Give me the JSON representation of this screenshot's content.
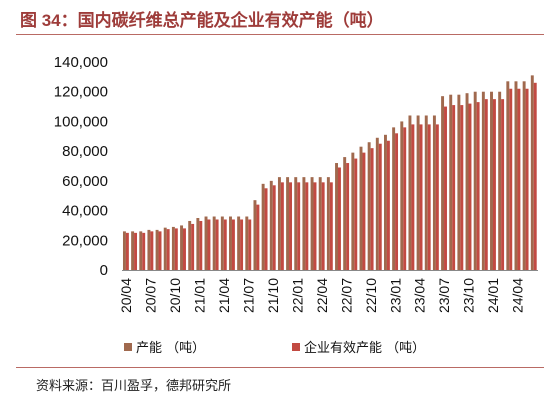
{
  "header": {
    "title": "图 34：国内碳纤维总产能及企业有效产能（吨）"
  },
  "footer": {
    "source": "资料来源：百川盈孚，德邦研究所"
  },
  "colors": {
    "total": "#a0694e",
    "effective": "#c24a42",
    "title": "#9e3c3a",
    "rule": "#b96a64"
  },
  "chart_data": {
    "type": "bar",
    "categories": [
      "20/04",
      "20/05",
      "20/06",
      "20/07",
      "20/08",
      "20/09",
      "20/10",
      "20/11",
      "20/12",
      "21/01",
      "21/02",
      "21/03",
      "21/04",
      "21/05",
      "21/06",
      "21/07",
      "21/08",
      "21/09",
      "21/10",
      "21/11",
      "21/12",
      "22/01",
      "22/02",
      "22/03",
      "22/04",
      "22/05",
      "22/06",
      "22/07",
      "22/08",
      "22/09",
      "22/10",
      "22/11",
      "22/12",
      "23/01",
      "23/02",
      "23/03",
      "23/04",
      "23/05",
      "23/06",
      "23/07",
      "23/08",
      "23/09",
      "23/10",
      "23/11",
      "23/12",
      "24/01",
      "24/02",
      "24/03",
      "24/04",
      "24/05",
      "24/06"
    ],
    "tick_labels": [
      "20/04",
      "20/07",
      "20/10",
      "21/01",
      "21/04",
      "21/07",
      "21/10",
      "22/01",
      "22/04",
      "22/07",
      "22/10",
      "23/01",
      "23/04",
      "23/07",
      "23/10",
      "24/01",
      "24/04"
    ],
    "series": [
      {
        "name": "产能 （吨）",
        "values": [
          26000,
          26000,
          26000,
          27000,
          27000,
          28500,
          29000,
          30000,
          33000,
          35000,
          36000,
          36000,
          36000,
          36000,
          36000,
          36000,
          47000,
          58000,
          60000,
          62500,
          62500,
          62500,
          62500,
          62500,
          62500,
          62500,
          72000,
          76000,
          79000,
          83000,
          86000,
          89000,
          91000,
          96000,
          100000,
          104000,
          104000,
          104000,
          104000,
          117000,
          118000,
          118000,
          119000,
          120000,
          120000,
          120000,
          120000,
          127000,
          127000,
          127000,
          131000
        ]
      },
      {
        "name": "企业有效产能 （吨）",
        "values": [
          25000,
          25000,
          25000,
          26000,
          26000,
          27500,
          28000,
          28000,
          31000,
          33000,
          34000,
          34000,
          34000,
          34000,
          34000,
          34000,
          44000,
          55000,
          57000,
          59000,
          59000,
          59000,
          59000,
          59000,
          59000,
          59000,
          69000,
          72000,
          75000,
          79000,
          82000,
          85000,
          87000,
          92000,
          96000,
          98000,
          98000,
          98000,
          98000,
          110000,
          111000,
          111000,
          112000,
          113000,
          115000,
          115000,
          115000,
          122000,
          122000,
          122000,
          126000
        ]
      }
    ],
    "yticks": [
      0,
      20000,
      40000,
      60000,
      80000,
      100000,
      120000,
      140000
    ],
    "ytick_labels": [
      "0",
      "20,000",
      "40,000",
      "60,000",
      "80,000",
      "100,000",
      "120,000",
      "140,000"
    ],
    "ylim": [
      0,
      140000
    ],
    "legend_position": "bottom",
    "grid": false
  }
}
